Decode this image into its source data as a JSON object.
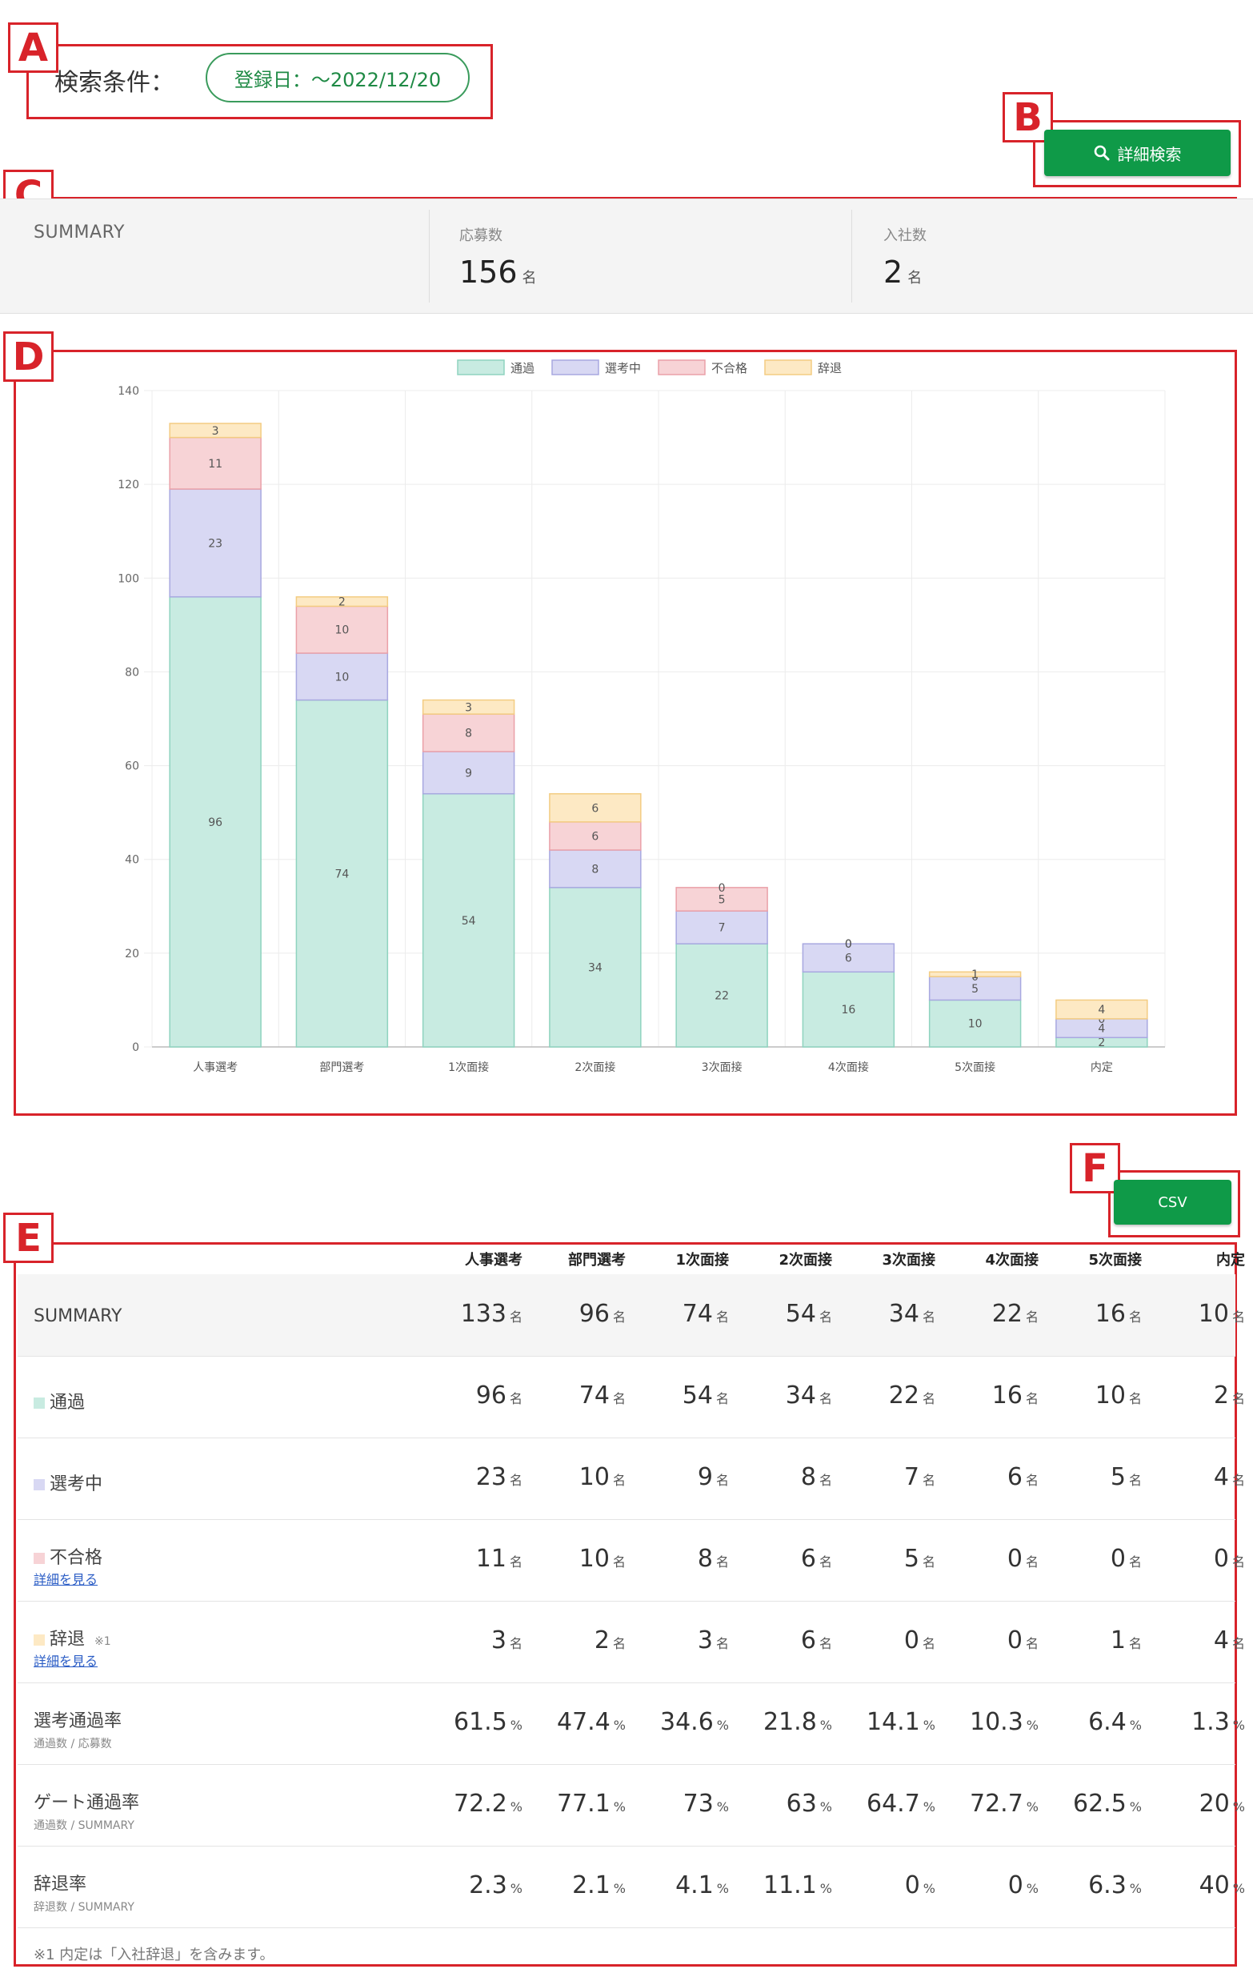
{
  "annotations": [
    "A",
    "B",
    "C",
    "D",
    "E",
    "F"
  ],
  "search_conditions": {
    "label": "検索条件：",
    "pill": "登録日：～2022/12/20"
  },
  "detail_search_button": {
    "label": "詳細検索",
    "icon": "search-icon"
  },
  "summary": {
    "title": "SUMMARY",
    "applicants_label": "応募数",
    "applicants_value": "156",
    "hires_label": "入社数",
    "hires_value": "2",
    "unit": "名"
  },
  "chart_data": {
    "type": "bar",
    "stacked": true,
    "categories": [
      "人事選考",
      "部門選考",
      "1次面接",
      "2次面接",
      "3次面接",
      "4次面接",
      "5次面接",
      "内定"
    ],
    "series": [
      {
        "name": "通過",
        "values": [
          96,
          74,
          54,
          34,
          22,
          16,
          10,
          2
        ],
        "color": "#c8ebe1",
        "border": "#8fd3bf"
      },
      {
        "name": "選考中",
        "values": [
          23,
          10,
          9,
          8,
          7,
          6,
          5,
          4
        ],
        "color": "#d8d8f3",
        "border": "#a8a8e0"
      },
      {
        "name": "不合格",
        "values": [
          11,
          10,
          8,
          6,
          5,
          0,
          0,
          0
        ],
        "color": "#f7d3d6",
        "border": "#eaa0a8"
      },
      {
        "name": "辞退",
        "values": [
          3,
          2,
          3,
          6,
          0,
          0,
          1,
          4
        ],
        "color": "#fde9c4",
        "border": "#f3cc82"
      }
    ],
    "ylim": [
      0,
      140
    ],
    "yticks": [
      0,
      20,
      40,
      60,
      80,
      100,
      120,
      140
    ],
    "legend_position": "top",
    "grid": true
  },
  "csv_button": {
    "label": "CSV"
  },
  "table": {
    "columns": [
      "人事選考",
      "部門選考",
      "1次面接",
      "2次面接",
      "3次面接",
      "4次面接",
      "5次面接",
      "内定"
    ],
    "unit_count": "名",
    "unit_pct": "%",
    "rows": [
      {
        "label": "SUMMARY",
        "values": [
          "133",
          "96",
          "74",
          "54",
          "34",
          "22",
          "16",
          "10"
        ],
        "unit": "名"
      },
      {
        "label": "通過",
        "swatch": "#c8ebe1",
        "values": [
          "96",
          "74",
          "54",
          "34",
          "22",
          "16",
          "10",
          "2"
        ],
        "unit": "名"
      },
      {
        "label": "選考中",
        "swatch": "#d8d8f3",
        "values": [
          "23",
          "10",
          "9",
          "8",
          "7",
          "6",
          "5",
          "4"
        ],
        "unit": "名"
      },
      {
        "label": "不合格",
        "swatch": "#f7d3d6",
        "link": "詳細を見る",
        "values": [
          "11",
          "10",
          "8",
          "6",
          "5",
          "0",
          "0",
          "0"
        ],
        "unit": "名"
      },
      {
        "label": "辞退",
        "swatch": "#fde9c4",
        "note": "※1",
        "link": "詳細を見る",
        "values": [
          "3",
          "2",
          "3",
          "6",
          "0",
          "0",
          "1",
          "4"
        ],
        "unit": "名"
      },
      {
        "label": "選考通過率",
        "sub": "通過数 / 応募数",
        "values": [
          "61.5",
          "47.4",
          "34.6",
          "21.8",
          "14.1",
          "10.3",
          "6.4",
          "1.3"
        ],
        "unit": "%"
      },
      {
        "label": "ゲート通過率",
        "sub": "通過数 / SUMMARY",
        "values": [
          "72.2",
          "77.1",
          "73",
          "63",
          "64.7",
          "72.7",
          "62.5",
          "20"
        ],
        "unit": "%"
      },
      {
        "label": "辞退率",
        "sub": "辞退数 / SUMMARY",
        "values": [
          "2.3",
          "2.1",
          "4.1",
          "11.1",
          "0",
          "0",
          "6.3",
          "40"
        ],
        "unit": "%"
      }
    ],
    "footnote": "※1 内定は「入社辞退」を含みます。"
  }
}
